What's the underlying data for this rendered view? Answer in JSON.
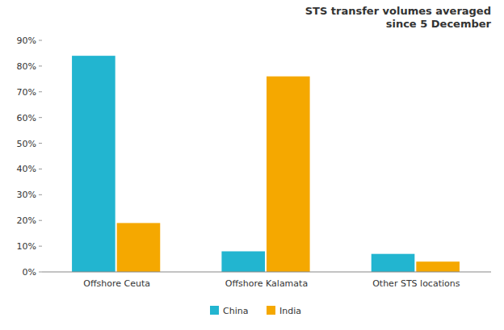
{
  "chart_data": {
    "type": "bar",
    "title": "STS transfer volumes averaged\nsince 5 December",
    "categories": [
      "Offshore Ceuta",
      "Offshore Kalamata",
      "Other STS locations"
    ],
    "series": [
      {
        "name": "China",
        "color": "#22b5d0",
        "values": [
          84,
          8,
          7
        ]
      },
      {
        "name": "India",
        "color": "#f5a800",
        "values": [
          19,
          76,
          4
        ]
      }
    ],
    "ylim": [
      0,
      90
    ],
    "yticks": [
      {
        "value": 0,
        "label": "0%"
      },
      {
        "value": 10,
        "label": "10%"
      },
      {
        "value": 20,
        "label": "20%"
      },
      {
        "value": 30,
        "label": "30%"
      },
      {
        "value": 40,
        "label": "40%"
      },
      {
        "value": 50,
        "label": "50%"
      },
      {
        "value": 60,
        "label": "60%"
      },
      {
        "value": 70,
        "label": "70%"
      },
      {
        "value": 80,
        "label": "80%"
      },
      {
        "value": 90,
        "label": "90%"
      }
    ],
    "grid": false,
    "legend": "bottom"
  }
}
